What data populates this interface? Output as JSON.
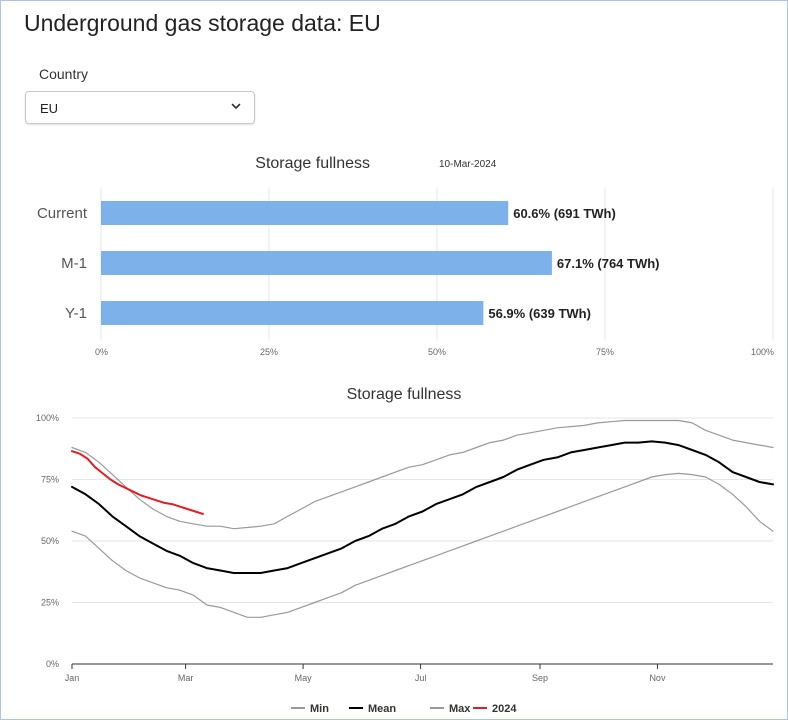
{
  "page": {
    "title": "Underground gas storage data: EU"
  },
  "country": {
    "label": "Country",
    "selected": "EU"
  },
  "icons": {
    "select_chevron": "chevron-down-icon"
  },
  "colors": {
    "bar": "#7cb2e9",
    "min": "#999999",
    "mean": "#000000",
    "max": "#999999",
    "y2024": "#e51c23",
    "grid": "#e6e6e6"
  },
  "chart_data": [
    {
      "type": "bar",
      "title": "Storage fullness",
      "subtitle": "10-Mar-2024",
      "orientation": "horizontal",
      "categories": [
        "Current",
        "M-1",
        "Y-1"
      ],
      "values": [
        60.6,
        67.1,
        56.9
      ],
      "data_labels": [
        "60.6% (691 TWh)",
        "67.1% (764 TWh)",
        "56.9% (639 TWh)"
      ],
      "xlim": [
        0,
        100
      ],
      "x_ticks": [
        "0%",
        "25%",
        "50%",
        "75%",
        "100%"
      ],
      "grid": true
    },
    {
      "type": "line",
      "title": "Storage fullness",
      "x_ticks": [
        "Jan",
        "Mar",
        "May",
        "Jul",
        "Sep",
        "Nov"
      ],
      "y_ticks": [
        "0%",
        "25%",
        "50%",
        "75%",
        "100%"
      ],
      "ylim": [
        0,
        100
      ],
      "grid": true,
      "legend_position": "bottom-center",
      "series": [
        {
          "name": "Min",
          "color": "#999999",
          "points": [
            [
              0,
              54
            ],
            [
              7,
              52
            ],
            [
              14,
              47
            ],
            [
              21,
              42
            ],
            [
              28,
              38
            ],
            [
              35,
              35
            ],
            [
              42,
              33
            ],
            [
              49,
              31
            ],
            [
              56,
              30
            ],
            [
              63,
              28
            ],
            [
              70,
              24
            ],
            [
              77,
              23
            ],
            [
              84,
              21
            ],
            [
              91,
              19
            ],
            [
              98,
              19
            ],
            [
              105,
              20
            ],
            [
              112,
              21
            ],
            [
              119,
              23
            ],
            [
              126,
              25
            ],
            [
              133,
              27
            ],
            [
              140,
              29
            ],
            [
              147,
              32
            ],
            [
              154,
              34
            ],
            [
              161,
              36
            ],
            [
              168,
              38
            ],
            [
              175,
              40
            ],
            [
              182,
              42
            ],
            [
              189,
              44
            ],
            [
              196,
              46
            ],
            [
              203,
              48
            ],
            [
              210,
              50
            ],
            [
              217,
              52
            ],
            [
              224,
              54
            ],
            [
              231,
              56
            ],
            [
              238,
              58
            ],
            [
              245,
              60
            ],
            [
              252,
              62
            ],
            [
              259,
              64
            ],
            [
              266,
              66
            ],
            [
              273,
              68
            ],
            [
              280,
              70
            ],
            [
              287,
              72
            ],
            [
              294,
              74
            ],
            [
              301,
              76
            ],
            [
              308,
              77
            ],
            [
              315,
              77.5
            ],
            [
              322,
              77
            ],
            [
              329,
              76
            ],
            [
              336,
              73
            ],
            [
              343,
              69
            ],
            [
              350,
              64
            ],
            [
              357,
              58
            ],
            [
              364,
              54
            ]
          ]
        },
        {
          "name": "Mean",
          "color": "#000000",
          "points": [
            [
              0,
              72
            ],
            [
              7,
              69
            ],
            [
              14,
              65
            ],
            [
              21,
              60
            ],
            [
              28,
              56
            ],
            [
              35,
              52
            ],
            [
              42,
              49
            ],
            [
              49,
              46
            ],
            [
              56,
              44
            ],
            [
              63,
              41
            ],
            [
              70,
              39
            ],
            [
              77,
              38
            ],
            [
              84,
              37
            ],
            [
              91,
              37
            ],
            [
              98,
              37
            ],
            [
              105,
              38
            ],
            [
              112,
              39
            ],
            [
              119,
              41
            ],
            [
              126,
              43
            ],
            [
              133,
              45
            ],
            [
              140,
              47
            ],
            [
              147,
              50
            ],
            [
              154,
              52
            ],
            [
              161,
              55
            ],
            [
              168,
              57
            ],
            [
              175,
              60
            ],
            [
              182,
              62
            ],
            [
              189,
              65
            ],
            [
              196,
              67
            ],
            [
              203,
              69
            ],
            [
              210,
              72
            ],
            [
              217,
              74
            ],
            [
              224,
              76
            ],
            [
              231,
              79
            ],
            [
              238,
              81
            ],
            [
              245,
              83
            ],
            [
              252,
              84
            ],
            [
              259,
              86
            ],
            [
              266,
              87
            ],
            [
              273,
              88
            ],
            [
              280,
              89
            ],
            [
              287,
              90
            ],
            [
              294,
              90
            ],
            [
              301,
              90.5
            ],
            [
              308,
              90
            ],
            [
              315,
              89
            ],
            [
              322,
              87
            ],
            [
              329,
              85
            ],
            [
              336,
              82
            ],
            [
              343,
              78
            ],
            [
              350,
              76
            ],
            [
              357,
              74
            ],
            [
              364,
              73
            ]
          ]
        },
        {
          "name": "Max",
          "color": "#999999",
          "points": [
            [
              0,
              88
            ],
            [
              7,
              86
            ],
            [
              14,
              82
            ],
            [
              21,
              77
            ],
            [
              28,
              72
            ],
            [
              35,
              67
            ],
            [
              42,
              63
            ],
            [
              49,
              60
            ],
            [
              56,
              58
            ],
            [
              63,
              57
            ],
            [
              70,
              56
            ],
            [
              77,
              56
            ],
            [
              84,
              55
            ],
            [
              91,
              55.5
            ],
            [
              98,
              56
            ],
            [
              105,
              57
            ],
            [
              112,
              60
            ],
            [
              119,
              63
            ],
            [
              126,
              66
            ],
            [
              133,
              68
            ],
            [
              140,
              70
            ],
            [
              147,
              72
            ],
            [
              154,
              74
            ],
            [
              161,
              76
            ],
            [
              168,
              78
            ],
            [
              175,
              80
            ],
            [
              182,
              81
            ],
            [
              189,
              83
            ],
            [
              196,
              85
            ],
            [
              203,
              86
            ],
            [
              210,
              88
            ],
            [
              217,
              90
            ],
            [
              224,
              91
            ],
            [
              231,
              93
            ],
            [
              238,
              94
            ],
            [
              245,
              95
            ],
            [
              252,
              96
            ],
            [
              259,
              96.5
            ],
            [
              266,
              97
            ],
            [
              273,
              98
            ],
            [
              280,
              98.5
            ],
            [
              287,
              99
            ],
            [
              294,
              99
            ],
            [
              301,
              99
            ],
            [
              308,
              99
            ],
            [
              315,
              99
            ],
            [
              322,
              98
            ],
            [
              329,
              95
            ],
            [
              336,
              93
            ],
            [
              343,
              91
            ],
            [
              350,
              90
            ],
            [
              357,
              89
            ],
            [
              364,
              88
            ]
          ]
        },
        {
          "name": "2024",
          "color": "#e51c23",
          "points": [
            [
              0,
              86.5
            ],
            [
              4,
              85.5
            ],
            [
              8,
              83.5
            ],
            [
              12,
              80
            ],
            [
              16,
              77.5
            ],
            [
              20,
              75
            ],
            [
              24,
              73
            ],
            [
              28,
              71.5
            ],
            [
              32,
              70
            ],
            [
              36,
              68.5
            ],
            [
              40,
              67.5
            ],
            [
              44,
              66.5
            ],
            [
              48,
              65.5
            ],
            [
              52,
              65
            ],
            [
              56,
              64
            ],
            [
              60,
              63
            ],
            [
              64,
              62
            ],
            [
              68,
              61
            ]
          ]
        }
      ]
    }
  ]
}
